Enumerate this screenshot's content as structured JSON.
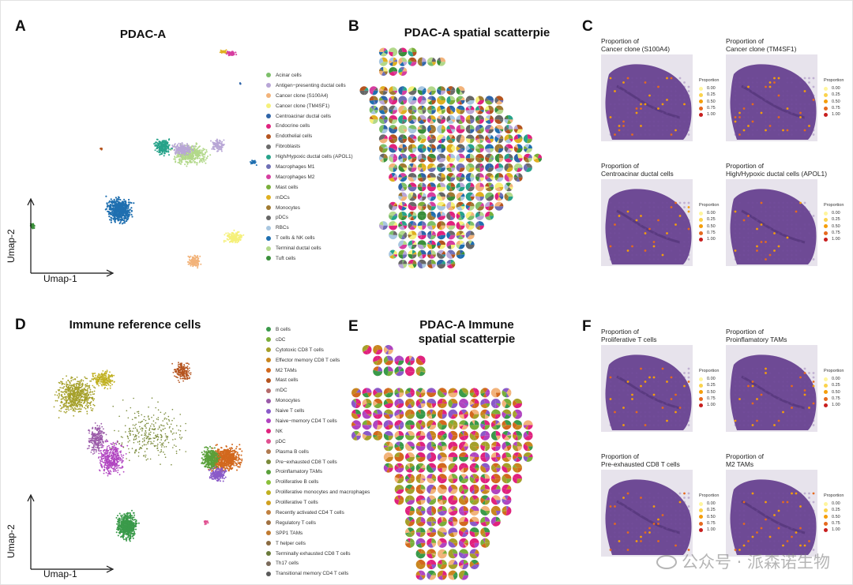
{
  "panels": {
    "A": {
      "letter": "A",
      "title": "PDAC-A",
      "xlabel": "Umap-1",
      "ylabel": "Umap-2"
    },
    "B": {
      "letter": "B",
      "title": "PDAC-A spatial scatterpie"
    },
    "C": {
      "letter": "C"
    },
    "D": {
      "letter": "D",
      "title": "Immune reference cells",
      "xlabel": "Umap-1",
      "ylabel": "Umap-2"
    },
    "E": {
      "letter": "E",
      "title_line1": "PDAC-A Immune",
      "title_line2": "spatial scatterpie"
    },
    "F": {
      "letter": "F"
    }
  },
  "legend_top": [
    {
      "label": "Acinar cells",
      "color": "#7dbf6a"
    },
    {
      "label": "Antigen−presenting ductal cells",
      "color": "#b8a6d6"
    },
    {
      "label": "Cancer clone (S100A4)",
      "color": "#f2b37a"
    },
    {
      "label": "Cancer clone (TM4SF1)",
      "color": "#f5f07a"
    },
    {
      "label": "Centroacinar ductal cells",
      "color": "#2e64a8"
    },
    {
      "label": "Endocrine cells",
      "color": "#e0227e"
    },
    {
      "label": "Endothelial cells",
      "color": "#b5541f"
    },
    {
      "label": "Fibroblasts",
      "color": "#6b6b6b"
    },
    {
      "label": "High/Hypoxic ductal cells (APOL1)",
      "color": "#27a38a"
    },
    {
      "label": "Macrophages M1",
      "color": "#6e6fb5"
    },
    {
      "label": "Macrophages M2",
      "color": "#d63ea0"
    },
    {
      "label": "Mast cells",
      "color": "#7aae3a"
    },
    {
      "label": "mDCs",
      "color": "#e0b020"
    },
    {
      "label": "Monocytes",
      "color": "#a07a32"
    },
    {
      "label": "pDCs",
      "color": "#666666"
    },
    {
      "label": "RBCs",
      "color": "#a8c6e0"
    },
    {
      "label": "T cells & NK cells",
      "color": "#1f6fb0"
    },
    {
      "label": "Terminal ductal cells",
      "color": "#b2d88a"
    },
    {
      "label": "Tuft cells",
      "color": "#3a8f3a"
    }
  ],
  "legend_bottom": [
    {
      "label": "B cells",
      "color": "#3a9a4a"
    },
    {
      "label": "cDC",
      "color": "#7aae3a"
    },
    {
      "label": "Cytotoxic CD8 T cells",
      "color": "#a5a02a"
    },
    {
      "label": "Effector memory CD8 T cells",
      "color": "#c9861f"
    },
    {
      "label": "M2 TAMs",
      "color": "#d2691e"
    },
    {
      "label": "Mast cells",
      "color": "#b5541f"
    },
    {
      "label": "mDC",
      "color": "#b56a6a"
    },
    {
      "label": "Monocytes",
      "color": "#9a5aa8"
    },
    {
      "label": "Naive T cells",
      "color": "#8a5ac8"
    },
    {
      "label": "Naive−memory CD4 T cells",
      "color": "#b044c0"
    },
    {
      "label": "NK",
      "color": "#e0227e"
    },
    {
      "label": "pDC",
      "color": "#e05090"
    },
    {
      "label": "Plasma B cells",
      "color": "#b07a50"
    },
    {
      "label": "Pre−exhausted CD8 T cells",
      "color": "#7a8a3a"
    },
    {
      "label": "Proinflamatory TAMs",
      "color": "#5aa03a"
    },
    {
      "label": "Proliferative B cells",
      "color": "#8abf3a"
    },
    {
      "label": "Proliferative monocytes and macrophages",
      "color": "#c0b020"
    },
    {
      "label": "Proliferative T cells",
      "color": "#d0a020"
    },
    {
      "label": "Recently activated CD4 T cells",
      "color": "#c08040"
    },
    {
      "label": "Regulatory T cells",
      "color": "#a07040"
    },
    {
      "label": "SPP1 TAMs",
      "color": "#c07a30"
    },
    {
      "label": "T helper cells",
      "color": "#8a6a40"
    },
    {
      "label": "Terminally exhausted CD8 T cells",
      "color": "#6a7a3a"
    },
    {
      "label": "Th17 cells",
      "color": "#7a6a5a"
    },
    {
      "label": "Transitional memory CD4 T cells",
      "color": "#5a5a5a"
    }
  ],
  "proportion_legend": {
    "title": "Proportion",
    "ticks": [
      "0.00",
      "0.25",
      "0.50",
      "0.75",
      "1.00"
    ]
  },
  "tiles_C": [
    {
      "line1": "Proportion of",
      "line2": "Cancer clone (S100A4)"
    },
    {
      "line1": "Proportion of",
      "line2": "Cancer clone (TM4SF1)"
    },
    {
      "line1": "Proportion of",
      "line2": "Centroacinar ductal cells"
    },
    {
      "line1": "Proportion of",
      "line2": "High/Hypoxic ductal cells (APOL1)"
    }
  ],
  "tiles_F": [
    {
      "line1": "Proportion of",
      "line2": "Proliferative T cells"
    },
    {
      "line1": "Proportion of",
      "line2": "Proinflamatory TAMs"
    },
    {
      "line1": "Proportion of",
      "line2": "Pre-exhausted CD8 T cells"
    },
    {
      "line1": "Proportion of",
      "line2": "M2 TAMs"
    }
  ],
  "watermark": "公众号 · 派森诺生物"
}
